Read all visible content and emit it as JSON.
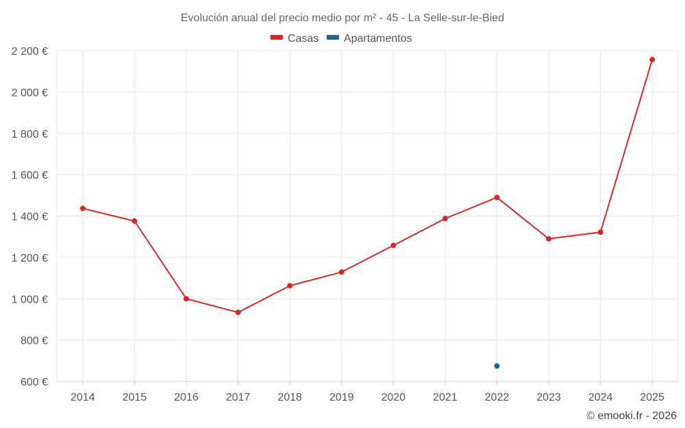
{
  "chart_data": {
    "type": "line",
    "title": "Evolución anual del precio medio por m² - 45 - La Selle-sur-le-Bied",
    "categories": [
      "2014",
      "2015",
      "2016",
      "2017",
      "2018",
      "2019",
      "2020",
      "2021",
      "2022",
      "2023",
      "2024",
      "2025"
    ],
    "series": [
      {
        "name": "Casas",
        "color": "#d62728",
        "values": [
          1437,
          1376,
          1000,
          934,
          1063,
          1129,
          1258,
          1388,
          1490,
          1290,
          1322,
          2157
        ]
      },
      {
        "name": "Apartamentos",
        "color": "#1f6391",
        "values": [
          null,
          null,
          null,
          null,
          null,
          null,
          null,
          null,
          675,
          null,
          null,
          null
        ]
      }
    ],
    "ylim": [
      600,
      2200
    ],
    "yticks": [
      600,
      800,
      1000,
      1200,
      1400,
      1600,
      1800,
      2000,
      2200
    ],
    "ytick_labels": [
      "600 €",
      "800 €",
      "1 000 €",
      "1 200 €",
      "1 400 €",
      "1 600 €",
      "1 800 €",
      "2 000 €",
      "2 200 €"
    ],
    "grid": true,
    "legend_position": "top-center"
  },
  "credit": "© emooki.fr - 2026"
}
